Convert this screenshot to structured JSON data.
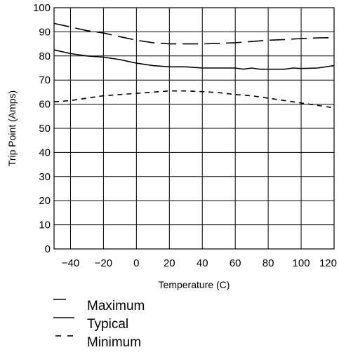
{
  "chart_data": {
    "type": "line",
    "title": "",
    "xlabel": "Temperature (C)",
    "ylabel": "Trip Point (Amps)",
    "xlim": [
      -50,
      120
    ],
    "ylim": [
      0,
      100
    ],
    "grid": true,
    "legend_position": "bottom-left",
    "x_ticks": [
      -40,
      -20,
      0,
      20,
      40,
      60,
      80,
      100,
      120
    ],
    "y_ticks": [
      0,
      10,
      20,
      30,
      40,
      50,
      60,
      70,
      80,
      90,
      100
    ],
    "x_tick_labels": [
      "−40",
      "−20",
      "0",
      "20",
      "40",
      "60",
      "80",
      "100",
      "120"
    ],
    "y_tick_labels": [
      "0",
      "10",
      "20",
      "30",
      "40",
      "50",
      "60",
      "70",
      "80",
      "90",
      "100"
    ],
    "series": [
      {
        "name": "Maximum",
        "style": "long-dash",
        "x": [
          -50,
          -40,
          -30,
          -20,
          -10,
          0,
          10,
          20,
          30,
          40,
          50,
          60,
          70,
          80,
          90,
          100,
          110,
          120
        ],
        "y": [
          93.5,
          92.0,
          90.5,
          89.5,
          88.0,
          86.5,
          85.5,
          85.0,
          85.0,
          85.0,
          85.2,
          85.5,
          86.0,
          86.5,
          86.8,
          87.2,
          87.5,
          87.6
        ]
      },
      {
        "name": "Typical",
        "style": "solid",
        "x": [
          -50,
          -40,
          -30,
          -20,
          -10,
          0,
          10,
          20,
          30,
          40,
          50,
          60,
          65,
          70,
          75,
          80,
          90,
          95,
          100,
          110,
          120
        ],
        "y": [
          82.5,
          81.0,
          80.0,
          79.5,
          78.5,
          77.0,
          76.0,
          75.5,
          75.5,
          75.0,
          75.0,
          75.0,
          74.5,
          75.0,
          74.5,
          74.5,
          74.5,
          75.0,
          74.8,
          75.0,
          76.0
        ]
      },
      {
        "name": "Minimum",
        "style": "short-dash",
        "x": [
          -50,
          -40,
          -30,
          -20,
          -10,
          0,
          10,
          20,
          30,
          40,
          50,
          60,
          70,
          80,
          90,
          100,
          110,
          120
        ],
        "y": [
          61.0,
          61.5,
          62.5,
          63.5,
          64.0,
          64.5,
          65.0,
          65.5,
          65.5,
          65.2,
          64.8,
          64.0,
          63.5,
          62.5,
          61.5,
          60.5,
          59.5,
          58.5
        ]
      }
    ]
  }
}
